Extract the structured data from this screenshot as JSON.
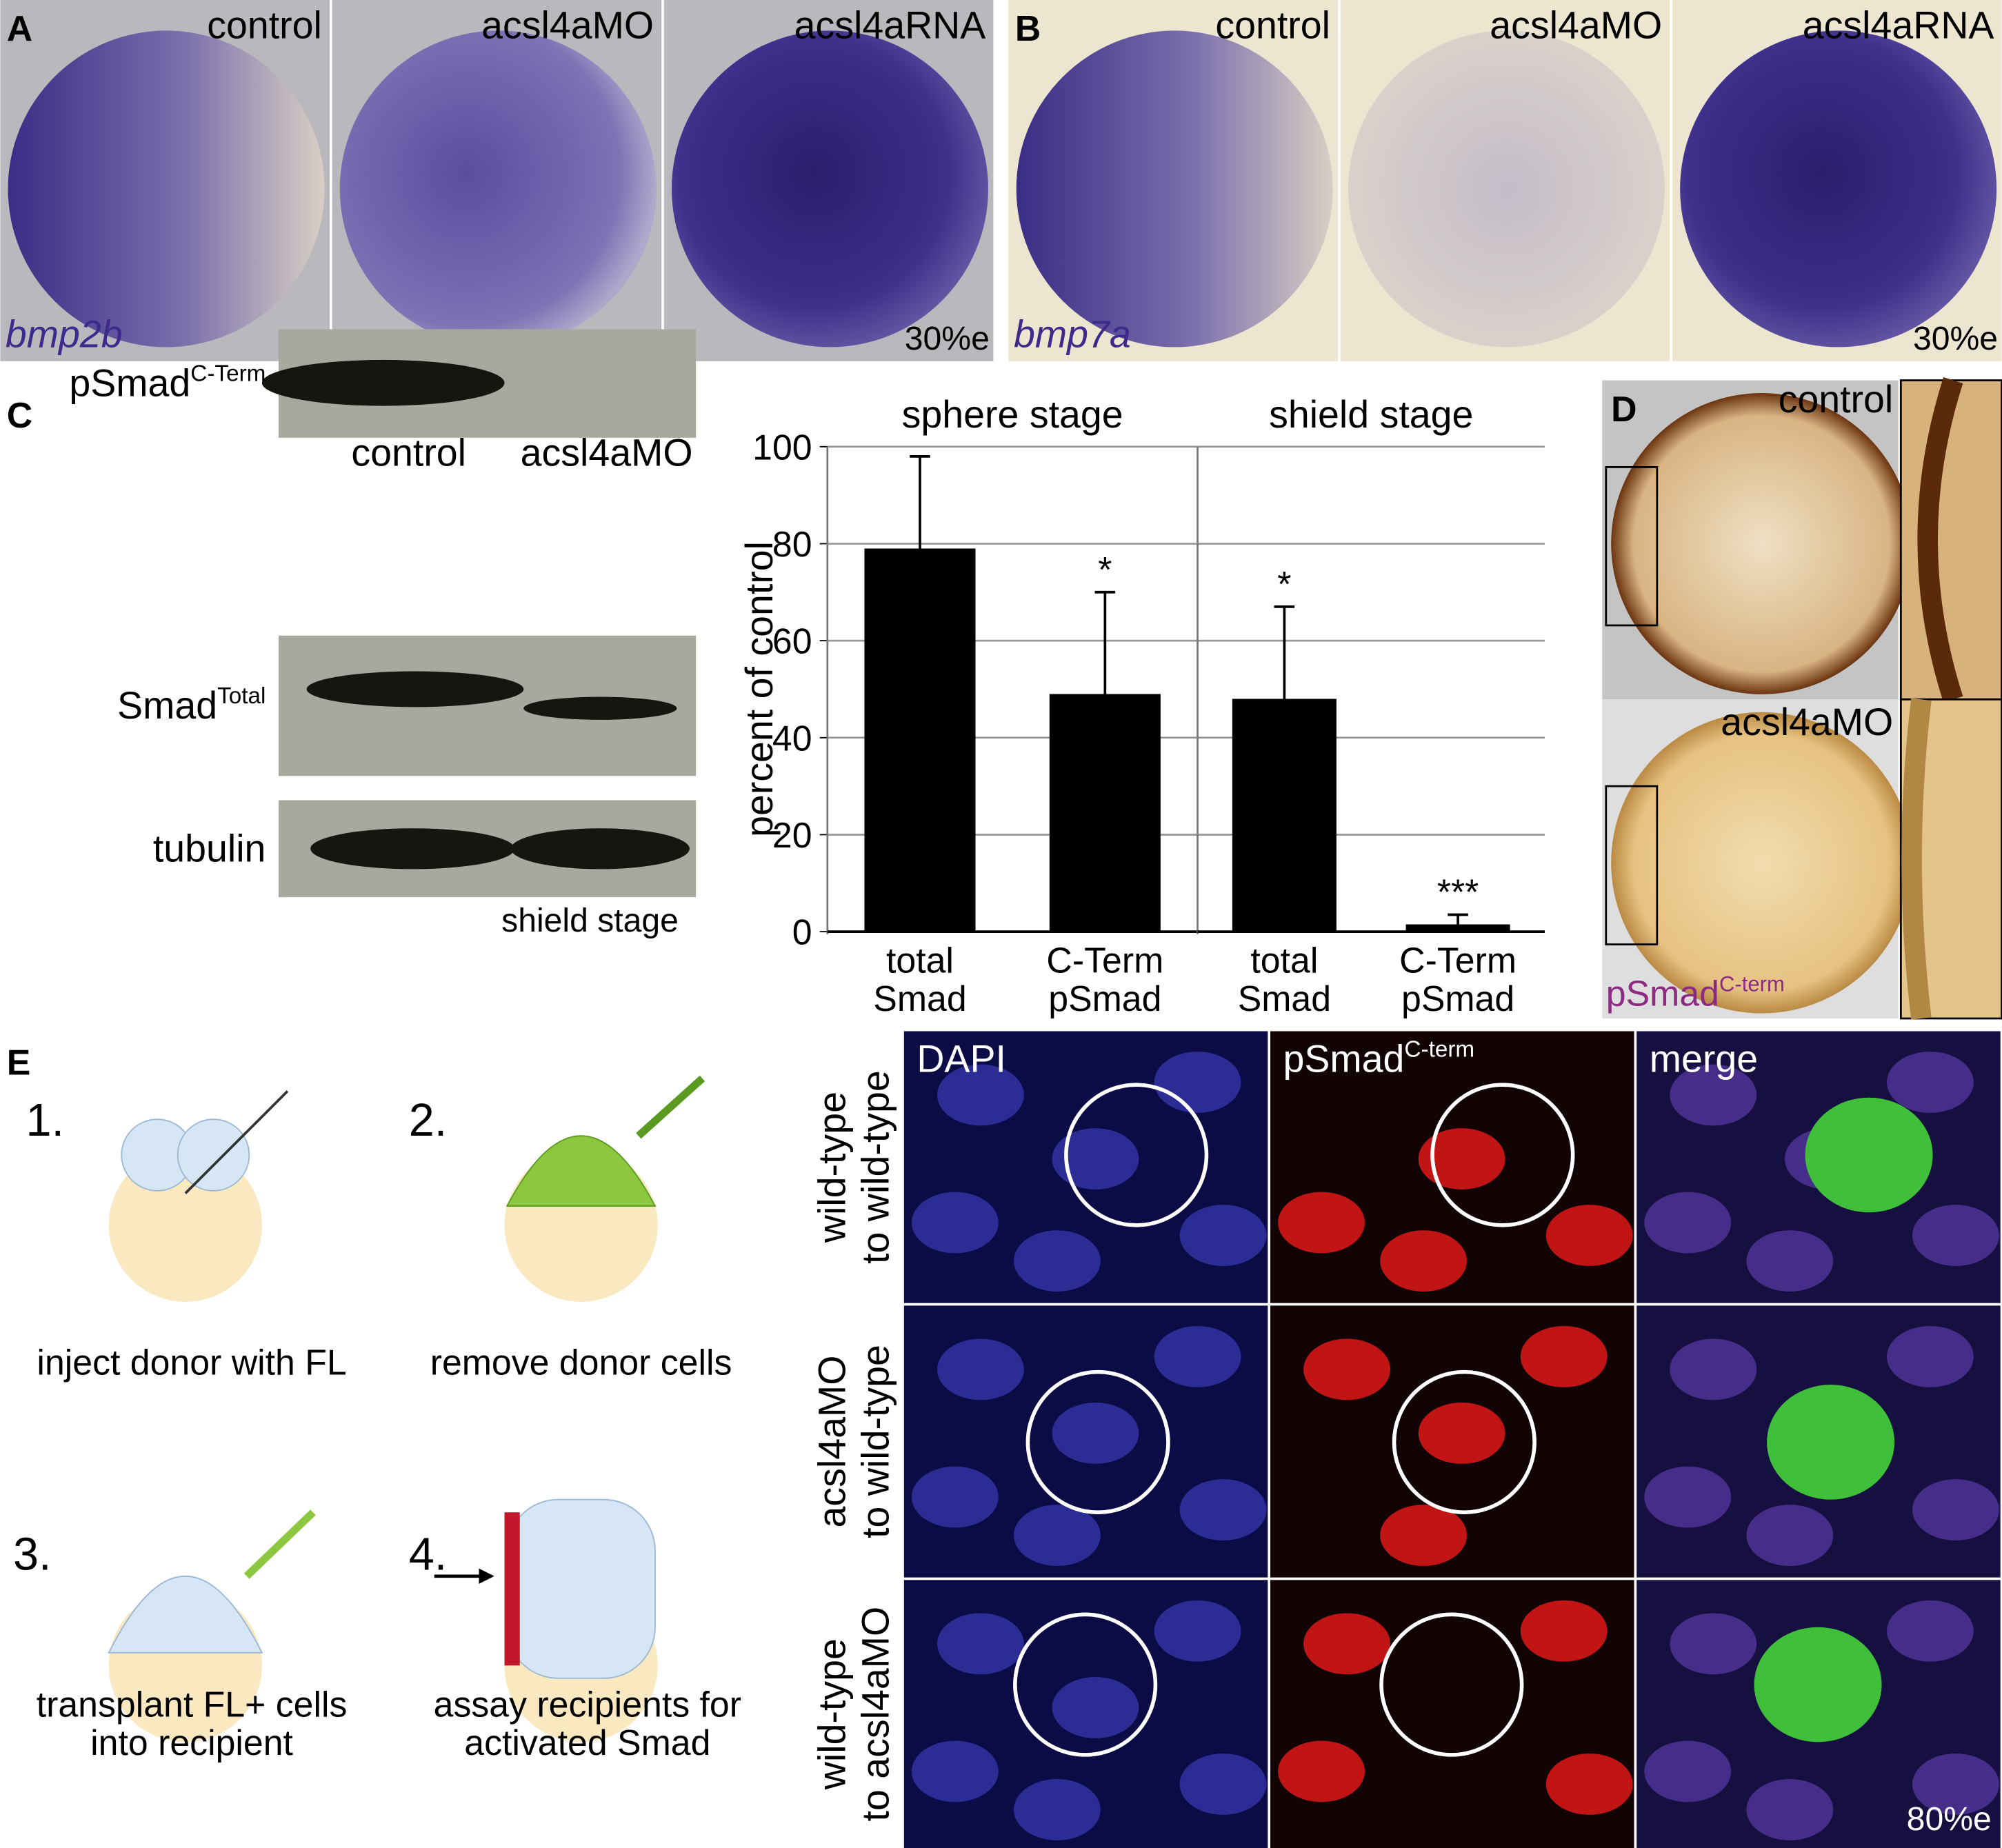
{
  "panel_a": {
    "label": "A",
    "columns": [
      "control",
      "acsl4aMO",
      "acsl4aRNA"
    ],
    "gene": "bmp2b",
    "stage": "30%e"
  },
  "panel_b": {
    "label": "B",
    "columns": [
      "control",
      "acsl4aMO",
      "acsl4aRNA"
    ],
    "gene": "bmp7a",
    "stage": "30%e"
  },
  "panel_c": {
    "label": "C",
    "blot": {
      "columns": [
        "control",
        "acsl4aMO"
      ],
      "rows": [
        {
          "name": "pSmad",
          "sup": "C-Term"
        },
        {
          "name": "Smad",
          "sup": "Total"
        },
        {
          "name": "tubulin"
        }
      ],
      "stage": "shield stage"
    }
  },
  "chart_data": [
    {
      "type": "bar",
      "title": "sphere stage",
      "y_label": "percent of control",
      "categories": [
        "total Smad",
        "C-Term pSmad"
      ],
      "values": [
        79,
        49
      ],
      "errors": [
        19,
        21
      ],
      "significance": [
        null,
        "*"
      ],
      "color": "#000000",
      "ylim": [
        0,
        100
      ],
      "yticks": [
        0,
        20,
        40,
        60,
        80,
        100
      ],
      "grid": true
    },
    {
      "type": "bar",
      "title": "shield stage",
      "categories": [
        "total Smad",
        "C-Term pSmad"
      ],
      "values": [
        48,
        1.5
      ],
      "errors": [
        19,
        2
      ],
      "significance": [
        "*",
        "***"
      ],
      "color": "#000000",
      "ylim": [
        0,
        100
      ],
      "yticks": [
        0,
        20,
        40,
        60,
        80,
        100
      ],
      "grid": true
    }
  ],
  "panel_d": {
    "label": "D",
    "rows": [
      "control",
      "acsl4aMO"
    ],
    "stain": {
      "name": "pSmad",
      "sup": "C-term"
    }
  },
  "panel_e": {
    "label": "E",
    "steps": [
      {
        "number": "1.",
        "caption": [
          "inject donor with FL"
        ]
      },
      {
        "number": "2.",
        "caption": [
          "remove donor cells"
        ]
      },
      {
        "number": "3.",
        "caption": [
          "transplant FL+ cells",
          "into recipient"
        ]
      },
      {
        "number": "4.",
        "caption": [
          "assay recipients for",
          "activated Smad"
        ]
      }
    ],
    "columns": [
      {
        "name": "DAPI"
      },
      {
        "name": "pSmad",
        "sup": "C-term"
      },
      {
        "name": "merge"
      }
    ],
    "rows": [
      [
        "wild-type",
        "to wild-type"
      ],
      [
        "acsl4aMO",
        "to wild-type"
      ],
      [
        "wild-type",
        "to acsl4aMO"
      ]
    ],
    "stage": "80%e"
  }
}
